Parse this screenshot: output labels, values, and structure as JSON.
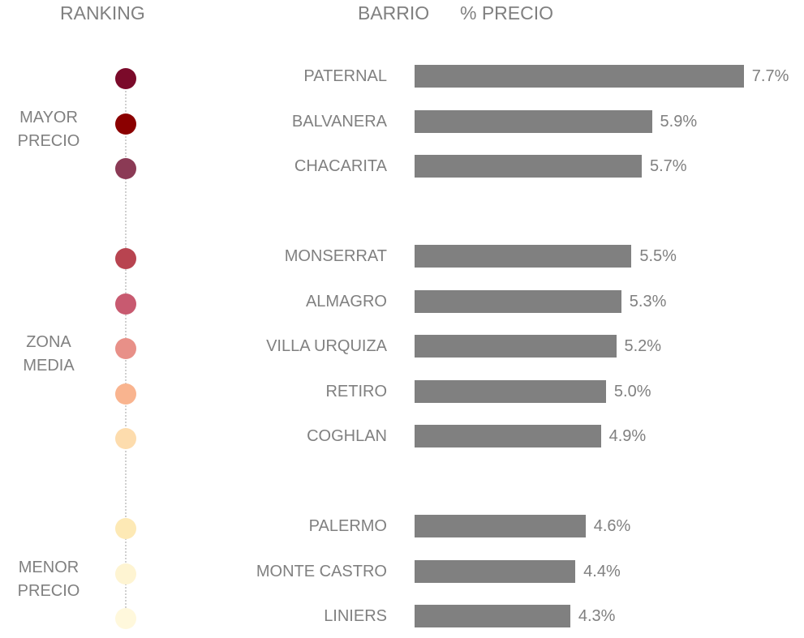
{
  "chart_data": {
    "type": "bar",
    "orientation": "horizontal",
    "ranking_header": "RANKING",
    "category_header": "BARRIO",
    "value_header": "% PRECIO",
    "categories": [
      "PATERNAL",
      "BALVANERA",
      "CHACARITA",
      "MONSERRAT",
      "ALMAGRO",
      "VILLA URQUIZA",
      "RETIRO",
      "COGHLAN",
      "PALERMO",
      "MONTE CASTRO",
      "LINIERS"
    ],
    "values": [
      7.7,
      5.9,
      5.7,
      5.5,
      5.3,
      5.2,
      5.0,
      4.9,
      4.6,
      4.4,
      4.3
    ],
    "value_labels": [
      "7.7%",
      "5.9%",
      "5.7%",
      "5.5%",
      "5.3%",
      "5.2%",
      "5.0%",
      "4.9%",
      "4.6%",
      "4.4%",
      "4.3%"
    ],
    "color": "#808080",
    "dot_colors": [
      "#7b0a2a",
      "#8b0000",
      "#8b3a55",
      "#b84450",
      "#c85a70",
      "#e89088",
      "#f9b48f",
      "#fddcad",
      "#fde9b5",
      "#fef4d2",
      "#fff8dc"
    ],
    "groups": [
      {
        "label": "MAYOR PRECIO",
        "count": 3
      },
      {
        "label": "ZONA MEDIA",
        "count": 5
      },
      {
        "label": "MENOR PRECIO",
        "count": 3
      }
    ],
    "xlim": [
      1.25,
      8.8
    ]
  }
}
